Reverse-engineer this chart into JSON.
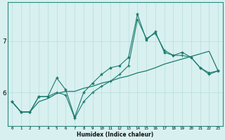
{
  "xlabel": "Humidex (Indice chaleur)",
  "x_values": [
    0,
    1,
    2,
    3,
    4,
    5,
    6,
    7,
    8,
    9,
    10,
    11,
    12,
    13,
    14,
    15,
    16,
    17,
    18,
    19,
    20,
    21,
    22,
    23
  ],
  "line_star_y": [
    5.82,
    5.62,
    5.62,
    5.92,
    5.92,
    6.28,
    6.05,
    5.52,
    6.0,
    6.18,
    6.35,
    6.48,
    6.52,
    6.68,
    7.52,
    7.02,
    7.18,
    6.78,
    6.72,
    6.78,
    6.68,
    6.48,
    6.38,
    6.42
  ],
  "line_plus_y": [
    5.82,
    5.62,
    5.62,
    5.92,
    5.92,
    6.0,
    5.95,
    5.5,
    5.82,
    6.0,
    6.12,
    6.22,
    6.35,
    6.52,
    7.42,
    7.05,
    7.15,
    6.82,
    6.72,
    6.72,
    6.68,
    6.48,
    6.35,
    6.42
  ],
  "line_plain_y": [
    5.82,
    5.62,
    5.62,
    5.82,
    5.88,
    5.98,
    6.02,
    6.02,
    6.08,
    6.12,
    6.18,
    6.22,
    6.28,
    6.32,
    6.38,
    6.42,
    6.48,
    6.55,
    6.6,
    6.65,
    6.7,
    6.75,
    6.8,
    6.42
  ],
  "line_color": "#1a7a6e",
  "bg_color": "#d8f0f0",
  "grid_color": "#b8dcdc",
  "yticks": [
    6,
    7
  ],
  "ylim": [
    5.35,
    7.75
  ],
  "xlim": [
    -0.5,
    23.5
  ]
}
